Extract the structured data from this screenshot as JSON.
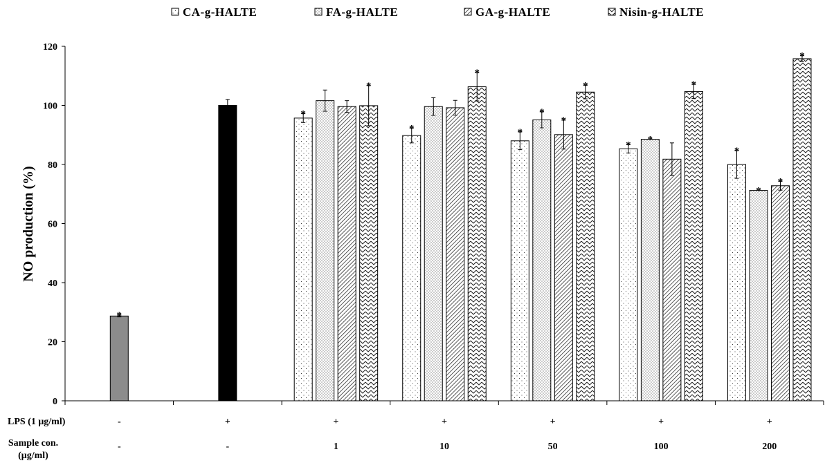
{
  "chart_data": {
    "type": "bar",
    "ylabel": "NO production  (%)",
    "ylim": [
      0,
      120
    ],
    "yticks": [
      0,
      20,
      40,
      60,
      80,
      100,
      120
    ],
    "legend": {
      "position": "top",
      "entries": [
        "CA-g-HALTE",
        "FA-g-HALTE",
        "GA-g-HALTE",
        "Nisin-g-HALTE"
      ]
    },
    "row_labels": {
      "lps": "LPS (1 μg/ml)",
      "sample_line1": "Sample con.",
      "sample_line2": "(μg/ml)"
    },
    "groups": [
      {
        "lps": "-",
        "sample": "-",
        "bars": [
          {
            "series": "control",
            "value": 28.7,
            "error": 0.3,
            "star": true
          }
        ]
      },
      {
        "lps": "+",
        "sample": "-",
        "bars": [
          {
            "series": "lps",
            "value": 100.0,
            "error": 2.0,
            "star": false
          }
        ]
      },
      {
        "lps": "+",
        "sample": "1",
        "bars": [
          {
            "series": "CA-g-HALTE",
            "value": 95.7,
            "error": 1.5,
            "star": true
          },
          {
            "series": "FA-g-HALTE",
            "value": 101.6,
            "error": 3.6,
            "star": false
          },
          {
            "series": "GA-g-HALTE",
            "value": 99.6,
            "error": 2.0,
            "star": false
          },
          {
            "series": "Nisin-g-HALTE",
            "value": 99.9,
            "error": 6.8,
            "star": true
          }
        ]
      },
      {
        "lps": "+",
        "sample": "10",
        "bars": [
          {
            "series": "CA-g-HALTE",
            "value": 89.8,
            "error": 2.5,
            "star": true
          },
          {
            "series": "FA-g-HALTE",
            "value": 99.6,
            "error": 3.0,
            "star": false
          },
          {
            "series": "GA-g-HALTE",
            "value": 99.2,
            "error": 2.5,
            "star": false
          },
          {
            "series": "Nisin-g-HALTE",
            "value": 106.3,
            "error": 4.8,
            "star": true
          }
        ]
      },
      {
        "lps": "+",
        "sample": "50",
        "bars": [
          {
            "series": "CA-g-HALTE",
            "value": 88.0,
            "error": 3.0,
            "star": true
          },
          {
            "series": "FA-g-HALTE",
            "value": 95.1,
            "error": 2.7,
            "star": true
          },
          {
            "series": "GA-g-HALTE",
            "value": 90.1,
            "error": 4.9,
            "star": true
          },
          {
            "series": "Nisin-g-HALTE",
            "value": 104.5,
            "error": 2.3,
            "star": true
          }
        ]
      },
      {
        "lps": "+",
        "sample": "100",
        "bars": [
          {
            "series": "CA-g-HALTE",
            "value": 85.3,
            "error": 1.4,
            "star": true
          },
          {
            "series": "FA-g-HALTE",
            "value": 88.5,
            "error": 0,
            "star": true
          },
          {
            "series": "GA-g-HALTE",
            "value": 81.8,
            "error": 5.5,
            "star": false
          },
          {
            "series": "Nisin-g-HALTE",
            "value": 104.7,
            "error": 2.4,
            "star": true
          }
        ]
      },
      {
        "lps": "+",
        "sample": "200",
        "bars": [
          {
            "series": "CA-g-HALTE",
            "value": 80.0,
            "error": 4.7,
            "star": true
          },
          {
            "series": "FA-g-HALTE",
            "value": 71.2,
            "error": 0,
            "star": true
          },
          {
            "series": "GA-g-HALTE",
            "value": 72.8,
            "error": 1.5,
            "star": true
          },
          {
            "series": "Nisin-g-HALTE",
            "value": 115.8,
            "error": 1.0,
            "star": true
          }
        ]
      }
    ],
    "series_styles": {
      "control": {
        "fill": "#8c8c8c"
      },
      "lps": {
        "fill": "#000000"
      },
      "CA-g-HALTE": {
        "pattern": "dots-sparse"
      },
      "FA-g-HALTE": {
        "pattern": "dots-dense"
      },
      "GA-g-HALTE": {
        "pattern": "diagonal-lines"
      },
      "Nisin-g-HALTE": {
        "pattern": "zigzag"
      }
    },
    "star_symbol": "*",
    "grid": false
  }
}
